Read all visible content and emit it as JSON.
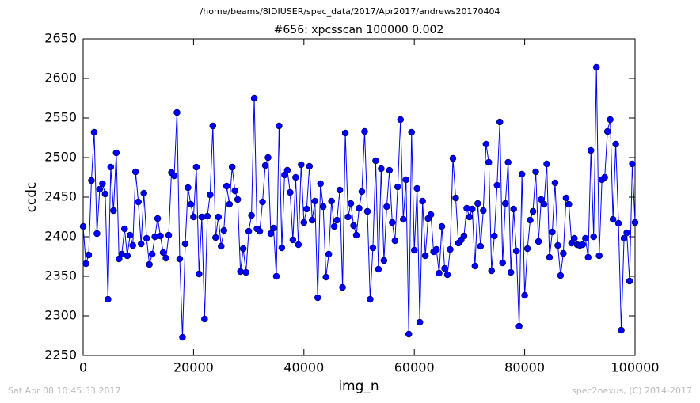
{
  "chart_data": {
    "type": "line",
    "header": "/home/beams/8IDIUSER/spec_data/2017/Apr2017/andrews20170404",
    "title": "#656: xpcsscan 100000 0.002",
    "xlabel": "img_n",
    "ylabel": "ccdc",
    "footer_left": "Sat Apr 08 10:45:33 2017",
    "footer_right": "spec2nexus, (C) 2014-2017",
    "color": "#0000ff",
    "x": [
      0,
      500,
      1000,
      1500,
      2000,
      2500,
      3000,
      3500,
      4000,
      4500,
      5000,
      5500,
      6000,
      6500,
      7000,
      7500,
      8000,
      8500,
      9000,
      9500,
      10000,
      10500,
      11000,
      11500,
      12000,
      12500,
      13000,
      13500,
      14000,
      14500,
      15000,
      15500,
      16000,
      16500,
      17000,
      17500,
      18000,
      18500,
      19000,
      19500,
      20000,
      20500,
      21000,
      21500,
      22000,
      22500,
      23000,
      23500,
      24000,
      24500,
      25000,
      25500,
      26000,
      26500,
      27000,
      27500,
      28000,
      28500,
      29000,
      29500,
      30000,
      30500,
      31000,
      31500,
      32000,
      32500,
      33000,
      33500,
      34000,
      34500,
      35000,
      35500,
      36000,
      36500,
      37000,
      37500,
      38000,
      38500,
      39000,
      39500,
      40000,
      40500,
      41000,
      41500,
      42000,
      42500,
      43000,
      43500,
      44000,
      44500,
      45000,
      45500,
      46000,
      46500,
      47000,
      47500,
      48000,
      48500,
      49000,
      49500,
      50000,
      50500,
      51000,
      51500,
      52000,
      52500,
      53000,
      53500,
      54000,
      54500,
      55000,
      55500,
      56000,
      56500,
      57000,
      57500,
      58000,
      58500,
      59000,
      59500,
      60000,
      60500,
      61000,
      61500,
      62000,
      62500,
      63000,
      63500,
      64000,
      64500,
      65000,
      65500,
      66000,
      66500,
      67000,
      67500,
      68000,
      68500,
      69000,
      69500,
      70000,
      70500,
      71000,
      71500,
      72000,
      72500,
      73000,
      73500,
      74000,
      74500,
      75000,
      75500,
      76000,
      76500,
      77000,
      77500,
      78000,
      78500,
      79000,
      79500,
      80000,
      80500,
      81000,
      81500,
      82000,
      82500,
      83000,
      83500,
      84000,
      84500,
      85000,
      85500,
      86000,
      86500,
      87000,
      87500,
      88000,
      88500,
      89000,
      89500,
      90000,
      90500,
      91000,
      91500,
      92000,
      92500,
      93000,
      93500,
      94000,
      94500,
      95000,
      95500,
      96000,
      96500,
      97000,
      97500,
      98000,
      98500,
      99000,
      99500,
      100000
    ],
    "values": [
      2413,
      2366,
      2377,
      2471,
      2532,
      2404,
      2460,
      2467,
      2454,
      2321,
      2488,
      2433,
      2506,
      2372,
      2378,
      2410,
      2376,
      2402,
      2389,
      2482,
      2444,
      2391,
      2455,
      2398,
      2365,
      2378,
      2400,
      2423,
      2401,
      2380,
      2373,
      2402,
      2481,
      2477,
      2557,
      2372,
      2273,
      2391,
      2462,
      2441,
      2425,
      2488,
      2353,
      2425,
      2296,
      2426,
      2453,
      2540,
      2399,
      2425,
      2388,
      2408,
      2464,
      2441,
      2488,
      2458,
      2447,
      2356,
      2385,
      2355,
      2407,
      2427,
      2575,
      2410,
      2407,
      2444,
      2490,
      2500,
      2404,
      2411,
      2350,
      2540,
      2386,
      2478,
      2484,
      2456,
      2396,
      2475,
      2390,
      2491,
      2418,
      2435,
      2489,
      2421,
      2445,
      2323,
      2467,
      2438,
      2349,
      2378,
      2445,
      2413,
      2421,
      2459,
      2336,
      2531,
      2425,
      2442,
      2414,
      2402,
      2436,
      2457,
      2533,
      2432,
      2321,
      2386,
      2496,
      2359,
      2486,
      2370,
      2438,
      2484,
      2418,
      2395,
      2463,
      2548,
      2422,
      2472,
      2277,
      2532,
      2383,
      2461,
      2292,
      2445,
      2376,
      2423,
      2428,
      2381,
      2384,
      2354,
      2413,
      2360,
      2352,
      2384,
      2499,
      2449,
      2392,
      2396,
      2401,
      2436,
      2425,
      2435,
      2363,
      2442,
      2388,
      2433,
      2517,
      2494,
      2357,
      2401,
      2465,
      2545,
      2367,
      2442,
      2494,
      2355,
      2435,
      2382,
      2287,
      2479,
      2326,
      2385,
      2421,
      2432,
      2482,
      2394,
      2447,
      2441,
      2492,
      2374,
      2406,
      2468,
      2389,
      2351,
      2379,
      2449,
      2441,
      2392,
      2398,
      2390,
      2389,
      2390,
      2398,
      2374,
      2509,
      2400,
      2614,
      2376,
      2472,
      2475,
      2533,
      2548,
      2422,
      2517,
      2417,
      2282,
      2398,
      2405,
      2344,
      2492,
      2418
    ],
    "xlim": [
      0,
      100000
    ],
    "xticks": [
      0,
      20000,
      40000,
      60000,
      80000,
      100000
    ],
    "ylim": [
      2250,
      2650
    ],
    "yticks": [
      2250,
      2300,
      2350,
      2400,
      2450,
      2500,
      2550,
      2600,
      2650
    ]
  }
}
